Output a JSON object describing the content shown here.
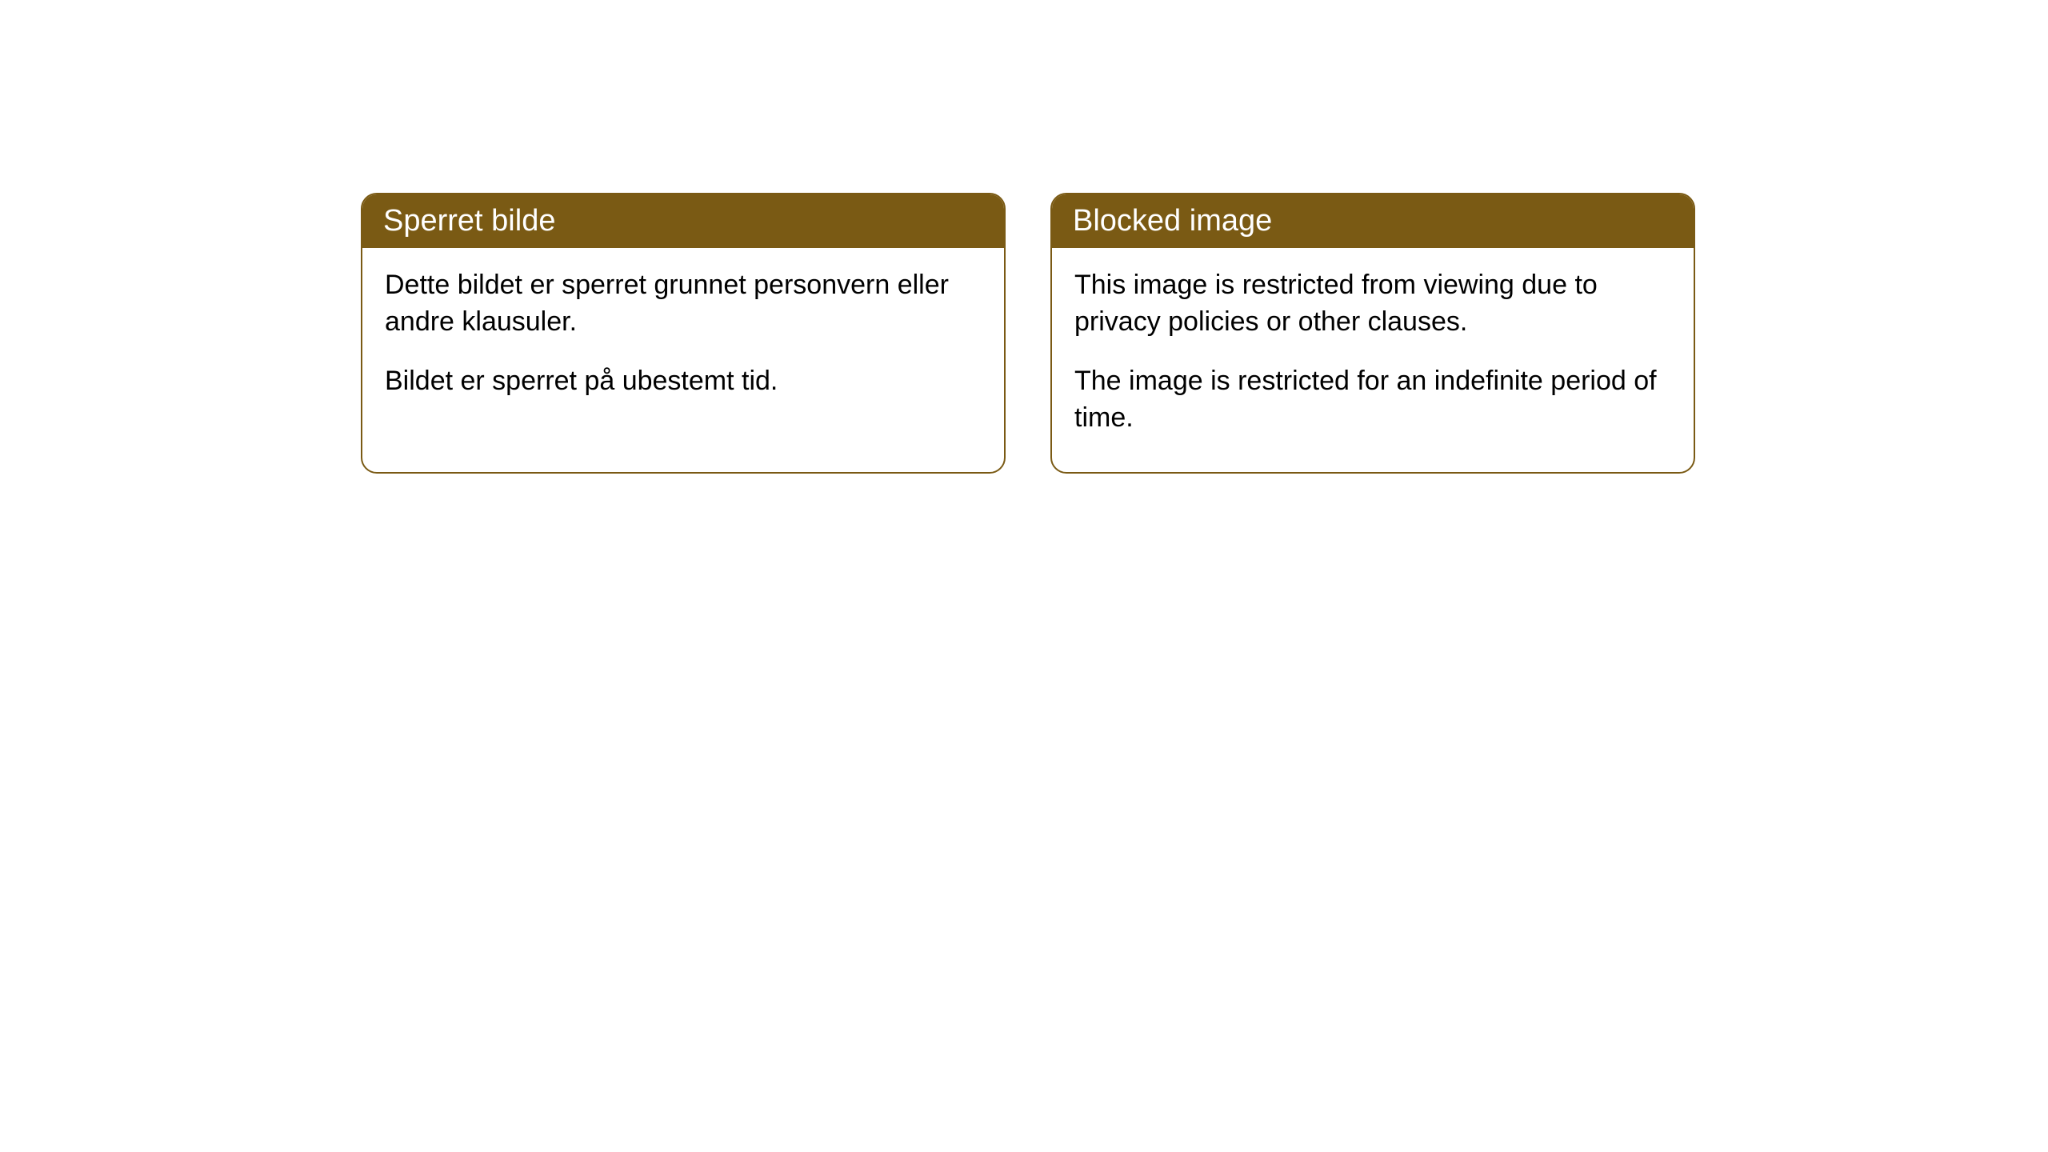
{
  "header_bg_color": "#7a5a14",
  "border_color": "#7a5a14",
  "body_bg_color": "#ffffff",
  "header_text_color": "#ffffff",
  "body_text_color": "#000000",
  "border_radius": 20,
  "header_fontsize": 38,
  "body_fontsize": 34,
  "cards": {
    "left": {
      "title": "Sperret bilde",
      "paragraph1": "Dette bildet er sperret grunnet personvern eller andre klausuler.",
      "paragraph2": "Bildet er sperret på ubestemt tid."
    },
    "right": {
      "title": "Blocked image",
      "paragraph1": "This image is restricted from viewing due to privacy policies or other clauses.",
      "paragraph2": "The image is restricted for an indefinite period of time."
    }
  }
}
